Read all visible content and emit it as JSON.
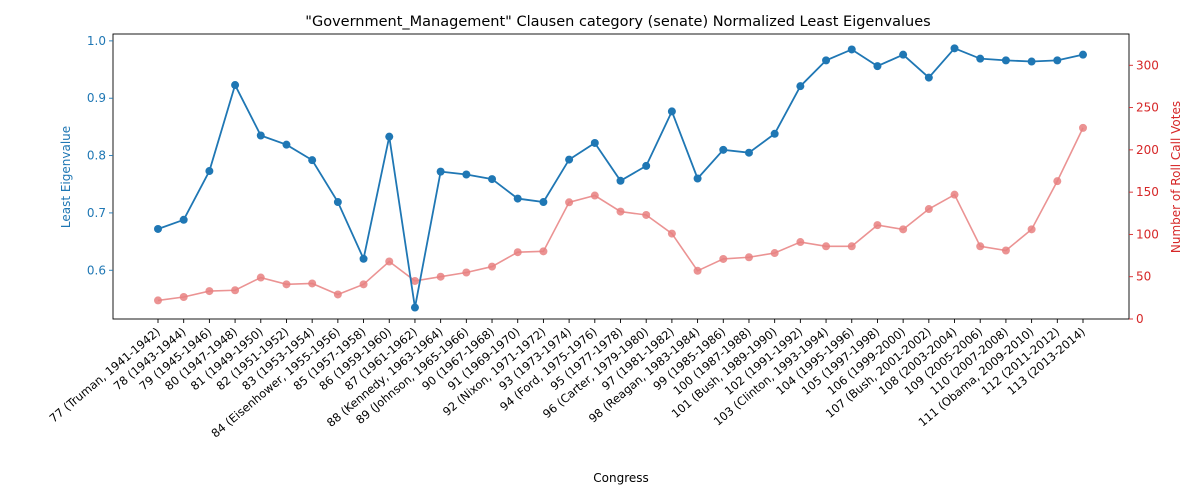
{
  "chart_data": {
    "type": "line",
    "title": "\"Government_Management\" Clausen category (senate) Normalized Least Eigenvalues",
    "xlabel": "Congress",
    "ylabel_left": "Least Eigenvalue",
    "ylabel_right": "Number of Roll Call Votes",
    "ylim_left": [
      0.515,
      1.012
    ],
    "ylim_right": [
      0,
      337
    ],
    "yticks_left": [
      "0.6",
      "0.7",
      "0.8",
      "0.9",
      "1.0"
    ],
    "yticks_right": [
      "0",
      "50",
      "100",
      "150",
      "200",
      "250",
      "300"
    ],
    "grid": false,
    "colors": {
      "left": "#1f77b4",
      "right": "#d62728",
      "votes_line": "#e88080"
    },
    "categories": [
      "77 (Truman, 1941-1942)",
      "78 (1943-1944)",
      "79 (1945-1946)",
      "80 (1947-1948)",
      "81 (1949-1950)",
      "82 (1951-1952)",
      "83 (1953-1954)",
      "84 (Eisenhower, 1955-1956)",
      "85 (1957-1958)",
      "86 (1959-1960)",
      "87 (1961-1962)",
      "88 (Kennedy, 1963-1964)",
      "89 (Johnson, 1965-1966)",
      "90 (1967-1968)",
      "91 (1969-1970)",
      "92 (Nixon, 1971-1972)",
      "93 (1973-1974)",
      "94 (Ford, 1975-1976)",
      "95 (1977-1978)",
      "96 (Carter, 1979-1980)",
      "97 (1981-1982)",
      "98 (Reagan, 1983-1984)",
      "99 (1985-1986)",
      "100 (1987-1988)",
      "101 (Bush, 1989-1990)",
      "102 (1991-1992)",
      "103 (Clinton, 1993-1994)",
      "104 (1995-1996)",
      "105 (1997-1998)",
      "106 (1999-2000)",
      "107 (Bush, 2001-2002)",
      "108 (2003-2004)",
      "109 (2005-2006)",
      "110 (2007-2008)",
      "111 (Obama, 2009-2010)",
      "112 (2011-2012)",
      "113 (2013-2014)"
    ],
    "series": [
      {
        "axis": "left",
        "values": [
          0.672,
          0.688,
          0.773,
          0.923,
          0.835,
          0.819,
          0.792,
          0.719,
          0.62,
          0.833,
          0.535,
          0.772,
          0.767,
          0.759,
          0.725,
          0.719,
          0.793,
          0.822,
          0.756,
          0.782,
          0.877,
          0.76,
          0.81,
          0.805,
          0.838,
          0.921,
          0.966,
          0.985,
          0.956,
          0.976,
          0.936,
          0.987,
          0.969,
          0.966,
          0.964,
          0.966,
          0.976
        ]
      },
      {
        "axis": "right",
        "values": [
          22,
          26,
          33,
          34,
          49,
          41,
          42,
          29,
          41,
          68,
          45,
          50,
          55,
          62,
          79,
          80,
          138,
          146,
          127,
          123,
          101,
          57,
          71,
          73,
          78,
          91,
          86,
          86,
          111,
          106,
          130,
          147,
          86,
          81,
          106,
          163,
          226
        ]
      }
    ]
  }
}
